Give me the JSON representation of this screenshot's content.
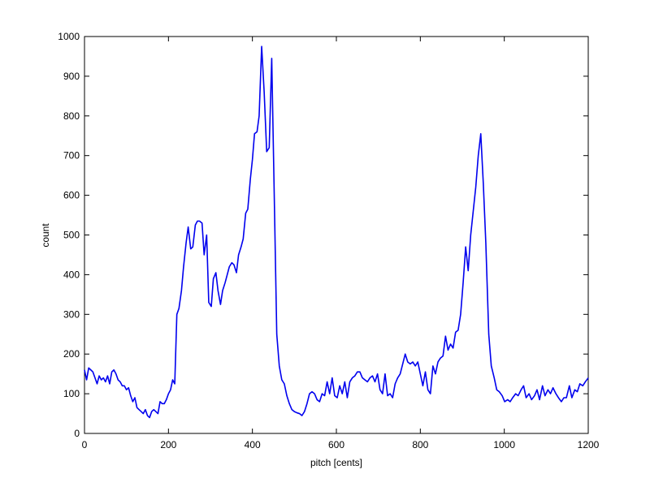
{
  "chart_data": {
    "type": "line",
    "xlabel": "pitch [cents]",
    "ylabel": "count",
    "xlim": [
      0,
      1200
    ],
    "xticks": [
      0,
      200,
      400,
      600,
      800,
      1000,
      1200
    ],
    "ylim": [
      0,
      1000
    ],
    "yticks": [
      0,
      100,
      200,
      300,
      400,
      500,
      600,
      700,
      800,
      900,
      1000
    ],
    "x": [
      0,
      5,
      10,
      15,
      20,
      25,
      30,
      35,
      40,
      45,
      50,
      55,
      60,
      65,
      70,
      75,
      80,
      85,
      90,
      95,
      100,
      105,
      110,
      115,
      120,
      125,
      130,
      135,
      140,
      145,
      150,
      155,
      160,
      165,
      170,
      175,
      180,
      185,
      190,
      195,
      200,
      205,
      210,
      215,
      220,
      225,
      231,
      236,
      242,
      247,
      253,
      258,
      264,
      269,
      274,
      280,
      285,
      291,
      296,
      302,
      307,
      313,
      318,
      324,
      329,
      335,
      340,
      345,
      351,
      356,
      362,
      367,
      373,
      378,
      384,
      389,
      395,
      400,
      405,
      411,
      416,
      422,
      428,
      434,
      440,
      446,
      452,
      458,
      464,
      470,
      476,
      482,
      488,
      494,
      500,
      506,
      512,
      518,
      524,
      530,
      536,
      542,
      548,
      554,
      560,
      566,
      572,
      578,
      584,
      590,
      596,
      602,
      608,
      614,
      620,
      626,
      632,
      638,
      644,
      650,
      656,
      662,
      668,
      674,
      680,
      686,
      692,
      698,
      704,
      710,
      716,
      722,
      728,
      734,
      740,
      746,
      752,
      758,
      764,
      770,
      776,
      782,
      788,
      794,
      800,
      806,
      812,
      818,
      824,
      830,
      836,
      842,
      848,
      854,
      860,
      866,
      872,
      878,
      884,
      890,
      896,
      902,
      908,
      914,
      920,
      926,
      932,
      938,
      944,
      950,
      956,
      963,
      969,
      976,
      982,
      988,
      995,
      1001,
      1008,
      1014,
      1020,
      1027,
      1033,
      1040,
      1046,
      1052,
      1059,
      1065,
      1072,
      1078,
      1084,
      1091,
      1097,
      1104,
      1110,
      1116,
      1123,
      1129,
      1136,
      1142,
      1148,
      1155,
      1161,
      1168,
      1174,
      1180,
      1187,
      1193,
      1200
    ],
    "series": [
      {
        "color": "#0000ee",
        "values": [
          160,
          135,
          165,
          160,
          155,
          140,
          125,
          145,
          135,
          140,
          130,
          145,
          125,
          155,
          160,
          150,
          135,
          130,
          120,
          120,
          110,
          115,
          95,
          80,
          90,
          65,
          60,
          55,
          50,
          60,
          45,
          40,
          55,
          60,
          55,
          50,
          80,
          75,
          75,
          85,
          100,
          110,
          135,
          125,
          300,
          315,
          360,
          420,
          480,
          520,
          465,
          470,
          525,
          535,
          535,
          530,
          450,
          500,
          330,
          320,
          390,
          405,
          360,
          325,
          360,
          380,
          400,
          420,
          430,
          425,
          405,
          450,
          470,
          490,
          555,
          565,
          640,
          690,
          755,
          760,
          800,
          975,
          860,
          710,
          720,
          945,
          600,
          250,
          170,
          135,
          125,
          95,
          75,
          60,
          55,
          52,
          50,
          45,
          55,
          75,
          100,
          105,
          100,
          85,
          80,
          100,
          95,
          130,
          100,
          140,
          95,
          90,
          120,
          100,
          130,
          90,
          130,
          140,
          145,
          155,
          155,
          140,
          135,
          130,
          140,
          145,
          130,
          150,
          110,
          100,
          150,
          95,
          100,
          90,
          125,
          140,
          150,
          175,
          200,
          180,
          175,
          180,
          170,
          180,
          150,
          120,
          155,
          110,
          100,
          170,
          150,
          180,
          190,
          195,
          245,
          210,
          225,
          215,
          255,
          260,
          300,
          380,
          470,
          410,
          500,
          560,
          620,
          700,
          755,
          630,
          480,
          250,
          170,
          140,
          110,
          105,
          95,
          80,
          85,
          80,
          90,
          100,
          95,
          110,
          120,
          90,
          100,
          85,
          95,
          110,
          85,
          120,
          95,
          110,
          100,
          115,
          100,
          90,
          80,
          90,
          90,
          120,
          90,
          110,
          105,
          125,
          120,
          130,
          140
        ]
      }
    ]
  }
}
